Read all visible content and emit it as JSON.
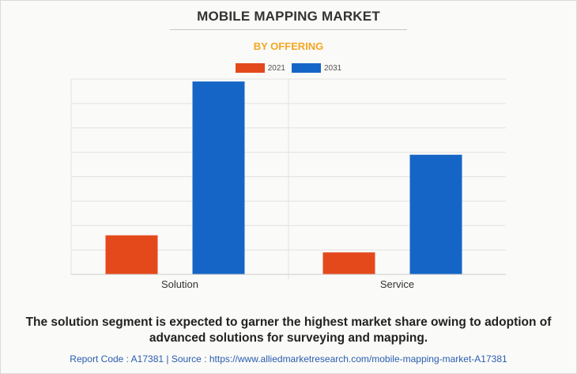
{
  "header": {
    "title": "MOBILE MAPPING MARKET",
    "subtitle": "BY OFFERING"
  },
  "colors": {
    "subtitle": "#f5a623",
    "series_2021": "#e4491c",
    "series_2031": "#1565c6"
  },
  "chart_data": {
    "type": "bar",
    "title": "MOBILE MAPPING MARKET",
    "subtitle": "BY OFFERING",
    "categories": [
      "Solution",
      "Service"
    ],
    "series": [
      {
        "name": "2021",
        "values": [
          1.6,
          0.9
        ]
      },
      {
        "name": "2031",
        "values": [
          7.9,
          4.9
        ]
      }
    ],
    "ylim": [
      0,
      8
    ],
    "xlabel": "",
    "ylabel": "",
    "grid": true,
    "y_tick_labels_shown": false,
    "legend_position": "top-center"
  },
  "caption": "The solution segment is expected to garner the highest market share owing to adoption of advanced solutions for surveying and mapping.",
  "footer": "Report Code : A17381  |  Source : https://www.alliedmarketresearch.com/mobile-mapping-market-A17381"
}
